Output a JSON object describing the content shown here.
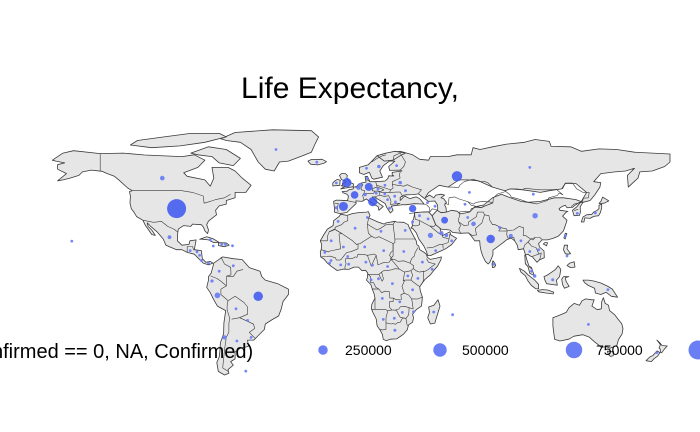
{
  "title": "Life Expectancy,",
  "colors": {
    "land": "#e6e6e6",
    "border": "#3a3a3a",
    "point": "#6b7ff5",
    "point_dense": "#3a55f0"
  },
  "legend": {
    "title": "nfirmed == 0, NA, Confirmed)",
    "entries": [
      {
        "label": "250000",
        "value": 250000
      },
      {
        "label": "500000",
        "value": 500000
      },
      {
        "label": "750000",
        "value": 750000
      },
      {
        "label": "",
        "value": 1000000
      }
    ]
  },
  "points": [
    {
      "name": "USA",
      "lon": -98,
      "lat": 39,
      "value": 1000000
    },
    {
      "name": "Canada",
      "lon": -106,
      "lat": 56,
      "value": 60000
    },
    {
      "name": "Greenland",
      "lon": -42,
      "lat": 72,
      "value": 1000
    },
    {
      "name": "Mexico",
      "lon": -102,
      "lat": 23,
      "value": 40000
    },
    {
      "name": "Cuba",
      "lon": -79,
      "lat": 21.5,
      "value": 2000
    },
    {
      "name": "Guatemala",
      "lon": -90.3,
      "lat": 15.5,
      "value": 3000
    },
    {
      "name": "Honduras",
      "lon": -86.5,
      "lat": 14.8,
      "value": 2000
    },
    {
      "name": "Nicaragua",
      "lon": -85,
      "lat": 12.9,
      "value": 1000
    },
    {
      "name": "Costa Rica",
      "lon": -84,
      "lat": 10,
      "value": 1000
    },
    {
      "name": "Panama",
      "lon": -80,
      "lat": 8.5,
      "value": 10000
    },
    {
      "name": "Dominican Republic",
      "lon": -70.5,
      "lat": 19,
      "value": 12000
    },
    {
      "name": "Haiti",
      "lon": -72.5,
      "lat": 19,
      "value": 1000
    },
    {
      "name": "Jamaica",
      "lon": -77.3,
      "lat": 18.1,
      "value": 500
    },
    {
      "name": "Puerto Rico",
      "lon": -66.5,
      "lat": 18.2,
      "value": 2000
    },
    {
      "name": "Colombia",
      "lon": -74,
      "lat": 4,
      "value": 20000
    },
    {
      "name": "Venezuela",
      "lon": -66,
      "lat": 7,
      "value": 1000
    },
    {
      "name": "Ecuador",
      "lon": -78,
      "lat": -1.5,
      "value": 30000
    },
    {
      "name": "Peru",
      "lon": -75,
      "lat": -9.5,
      "value": 90000
    },
    {
      "name": "Brazil",
      "lon": -52,
      "lat": -10,
      "value": 250000
    },
    {
      "name": "Bolivia",
      "lon": -64.5,
      "lat": -17,
      "value": 5000
    },
    {
      "name": "Paraguay",
      "lon": -58,
      "lat": -23.5,
      "value": 1000
    },
    {
      "name": "Chile",
      "lon": -71,
      "lat": -33,
      "value": 50000
    },
    {
      "name": "Argentina",
      "lon": -64,
      "lat": -35,
      "value": 8000
    },
    {
      "name": "Uruguay",
      "lon": -56,
      "lat": -33,
      "value": 500
    },
    {
      "name": "Falklands",
      "lon": -59,
      "lat": -51.8,
      "value": 100
    },
    {
      "name": "Hawaii",
      "lon": -157,
      "lat": 20.8,
      "value": 500
    },
    {
      "name": "Iceland",
      "lon": -19,
      "lat": 64.9,
      "value": 1500
    },
    {
      "name": "Ireland",
      "lon": -8,
      "lat": 53.3,
      "value": 20000
    },
    {
      "name": "United Kingdom",
      "lon": -2,
      "lat": 53.5,
      "value": 230000
    },
    {
      "name": "Portugal",
      "lon": -8,
      "lat": 39.5,
      "value": 25000
    },
    {
      "name": "Spain",
      "lon": -4,
      "lat": 40.2,
      "value": 230000
    },
    {
      "name": "France",
      "lon": 2.3,
      "lat": 46.6,
      "value": 160000
    },
    {
      "name": "Belgium",
      "lon": 4.5,
      "lat": 50.6,
      "value": 50000
    },
    {
      "name": "Netherlands",
      "lon": 5.5,
      "lat": 52.2,
      "value": 40000
    },
    {
      "name": "Germany",
      "lon": 10.3,
      "lat": 51.1,
      "value": 175000
    },
    {
      "name": "Switzerland",
      "lon": 8.2,
      "lat": 46.8,
      "value": 30000
    },
    {
      "name": "Italy",
      "lon": 12.5,
      "lat": 42.8,
      "value": 230000
    },
    {
      "name": "Austria",
      "lon": 14.5,
      "lat": 47.6,
      "value": 16000
    },
    {
      "name": "Denmark",
      "lon": 9.5,
      "lat": 56,
      "value": 11000
    },
    {
      "name": "Norway",
      "lon": 9,
      "lat": 61.5,
      "value": 8000
    },
    {
      "name": "Sweden",
      "lon": 16,
      "lat": 62.5,
      "value": 35000
    },
    {
      "name": "Finland",
      "lon": 26,
      "lat": 63,
      "value": 7000
    },
    {
      "name": "Poland",
      "lon": 19.4,
      "lat": 52,
      "value": 20000
    },
    {
      "name": "Czechia",
      "lon": 15.5,
      "lat": 49.8,
      "value": 9000
    },
    {
      "name": "Hungary",
      "lon": 19.3,
      "lat": 47.2,
      "value": 4000
    },
    {
      "name": "Romania",
      "lon": 24.9,
      "lat": 45.9,
      "value": 18000
    },
    {
      "name": "Ukraine",
      "lon": 31,
      "lat": 49,
      "value": 20000
    },
    {
      "name": "Belarus",
      "lon": 28,
      "lat": 53.5,
      "value": 35000
    },
    {
      "name": "Serbia",
      "lon": 20.9,
      "lat": 44,
      "value": 11000
    },
    {
      "name": "Greece",
      "lon": 22,
      "lat": 39.2,
      "value": 3000
    },
    {
      "name": "Bulgaria",
      "lon": 25.3,
      "lat": 42.7,
      "value": 2000
    },
    {
      "name": "Russia",
      "lon": 60,
      "lat": 57,
      "value": 300000
    },
    {
      "name": "Russia East",
      "lon": 101,
      "lat": 62,
      "value": 15000
    },
    {
      "name": "Turkey",
      "lon": 35,
      "lat": 39,
      "value": 150000
    },
    {
      "name": "Kazakhstan",
      "lon": 67,
      "lat": 48,
      "value": 6000
    },
    {
      "name": "Uzbekistan",
      "lon": 64.5,
      "lat": 41.4,
      "value": 3000
    },
    {
      "name": "Georgia",
      "lon": 43.4,
      "lat": 42.3,
      "value": 1000
    },
    {
      "name": "Azerbaijan",
      "lon": 47.6,
      "lat": 40.3,
      "value": 4000
    },
    {
      "name": "Iran",
      "lon": 53,
      "lat": 32.5,
      "value": 130000
    },
    {
      "name": "Iraq",
      "lon": 43.7,
      "lat": 33.2,
      "value": 5000
    },
    {
      "name": "Syria",
      "lon": 38.9,
      "lat": 35,
      "value": 100
    },
    {
      "name": "Israel",
      "lon": 35,
      "lat": 31.5,
      "value": 17000
    },
    {
      "name": "Saudi Arabia",
      "lon": 45,
      "lat": 24,
      "value": 75000
    },
    {
      "name": "UAE",
      "lon": 54,
      "lat": 24,
      "value": 35000
    },
    {
      "name": "Qatar",
      "lon": 51.2,
      "lat": 25.3,
      "value": 50000
    },
    {
      "name": "Oman",
      "lon": 57,
      "lat": 21,
      "value": 9000
    },
    {
      "name": "Yemen",
      "lon": 48,
      "lat": 15.5,
      "value": 200
    },
    {
      "name": "Afghanistan",
      "lon": 66,
      "lat": 34,
      "value": 12000
    },
    {
      "name": "Pakistan",
      "lon": 69.3,
      "lat": 30.4,
      "value": 60000
    },
    {
      "name": "India",
      "lon": 79,
      "lat": 22,
      "value": 200000
    },
    {
      "name": "Nepal",
      "lon": 84,
      "lat": 28.4,
      "value": 1000
    },
    {
      "name": "Bangladesh",
      "lon": 90.3,
      "lat": 23.7,
      "value": 45000
    },
    {
      "name": "Sri Lanka",
      "lon": 80.7,
      "lat": 7.9,
      "value": 1500
    },
    {
      "name": "China",
      "lon": 104,
      "lat": 35,
      "value": 84000
    },
    {
      "name": "Mongolia",
      "lon": 103,
      "lat": 47,
      "value": 200
    },
    {
      "name": "South Korea",
      "lon": 127.8,
      "lat": 36.3,
      "value": 11500
    },
    {
      "name": "Japan",
      "lon": 138,
      "lat": 36.5,
      "value": 17000
    },
    {
      "name": "Taiwan",
      "lon": 121,
      "lat": 23.7,
      "value": 500
    },
    {
      "name": "Philippines",
      "lon": 122,
      "lat": 12.5,
      "value": 18000
    },
    {
      "name": "Vietnam",
      "lon": 106,
      "lat": 16,
      "value": 300
    },
    {
      "name": "Thailand",
      "lon": 101,
      "lat": 15,
      "value": 3000
    },
    {
      "name": "Myanmar",
      "lon": 96,
      "lat": 21,
      "value": 200
    },
    {
      "name": "Malaysia",
      "lon": 102,
      "lat": 4,
      "value": 7500
    },
    {
      "name": "Singapore",
      "lon": 103.8,
      "lat": 1.3,
      "value": 32000
    },
    {
      "name": "Indonesia",
      "lon": 113.9,
      "lat": -0.8,
      "value": 25000
    },
    {
      "name": "Papua New Guinea",
      "lon": 145,
      "lat": -6.3,
      "value": 100
    },
    {
      "name": "Australia",
      "lon": 134,
      "lat": -25.7,
      "value": 7100
    },
    {
      "name": "New Zealand",
      "lon": 172.5,
      "lat": -41.5,
      "value": 1500
    },
    {
      "name": "Egypt",
      "lon": 30.8,
      "lat": 26.8,
      "value": 20000
    },
    {
      "name": "Libya",
      "lon": 17.2,
      "lat": 26.3,
      "value": 100
    },
    {
      "name": "Tunisia",
      "lon": 9.5,
      "lat": 34,
      "value": 1000
    },
    {
      "name": "Algeria",
      "lon": 2.6,
      "lat": 28,
      "value": 8000
    },
    {
      "name": "Morocco",
      "lon": -7,
      "lat": 31.8,
      "value": 7500
    },
    {
      "name": "Mauritania",
      "lon": -10.9,
      "lat": 21,
      "value": 300
    },
    {
      "name": "Senegal",
      "lon": -14.5,
      "lat": 14.5,
      "value": 3500
    },
    {
      "name": "Guinea",
      "lon": -11,
      "lat": 10,
      "value": 3500
    },
    {
      "name": "Sierra Leone",
      "lon": -11.8,
      "lat": 8.5,
      "value": 800
    },
    {
      "name": "Mali",
      "lon": -4,
      "lat": 17.5,
      "value": 1000
    },
    {
      "name": "Niger",
      "lon": 8,
      "lat": 17.6,
      "value": 900
    },
    {
      "name": "Chad",
      "lon": 18.7,
      "lat": 15.5,
      "value": 600
    },
    {
      "name": "Sudan",
      "lon": 30,
      "lat": 15,
      "value": 4000
    },
    {
      "name": "Ethiopia",
      "lon": 40.5,
      "lat": 9.1,
      "value": 800
    },
    {
      "name": "Somalia",
      "lon": 46,
      "lat": 5.1,
      "value": 1700
    },
    {
      "name": "Kenya",
      "lon": 38,
      "lat": 0,
      "value": 1300
    },
    {
      "name": "Nigeria",
      "lon": 8.7,
      "lat": 9.1,
      "value": 8000
    },
    {
      "name": "Ghana",
      "lon": -1,
      "lat": 7.9,
      "value": 6500
    },
    {
      "name": "Ivory Coast",
      "lon": -5.5,
      "lat": 7.5,
      "value": 2500
    },
    {
      "name": "Burkina Faso",
      "lon": -1.6,
      "lat": 12.2,
      "value": 800
    },
    {
      "name": "Cameroon",
      "lon": 12.4,
      "lat": 7.4,
      "value": 4000
    },
    {
      "name": "Central African Rep.",
      "lon": 20.9,
      "lat": 6.6,
      "value": 700
    },
    {
      "name": "Gabon",
      "lon": 11.6,
      "lat": -0.8,
      "value": 2000
    },
    {
      "name": "Congo",
      "lon": 15.8,
      "lat": -0.2,
      "value": 500
    },
    {
      "name": "DR Congo",
      "lon": 23.6,
      "lat": -2.9,
      "value": 2000
    },
    {
      "name": "Uganda",
      "lon": 32.3,
      "lat": 1.4,
      "value": 260
    },
    {
      "name": "Tanzania",
      "lon": 35,
      "lat": -6.4,
      "value": 500
    },
    {
      "name": "Angola",
      "lon": 17.9,
      "lat": -11.2,
      "value": 60
    },
    {
      "name": "Zambia",
      "lon": 27.8,
      "lat": -13.1,
      "value": 900
    },
    {
      "name": "Mozambique",
      "lon": 35.5,
      "lat": -18.7,
      "value": 200
    },
    {
      "name": "Zimbabwe",
      "lon": 29.2,
      "lat": -19,
      "value": 50
    },
    {
      "name": "Madagascar",
      "lon": 46.9,
      "lat": -18.8,
      "value": 500
    },
    {
      "name": "Namibia",
      "lon": 18.5,
      "lat": -22.9,
      "value": 20
    },
    {
      "name": "Botswana",
      "lon": 24.7,
      "lat": -22.3,
      "value": 30
    },
    {
      "name": "South Africa",
      "lon": 25,
      "lat": -29,
      "value": 25000
    },
    {
      "name": "Mauritius",
      "lon": 57.5,
      "lat": -20.3,
      "value": 300
    }
  ]
}
